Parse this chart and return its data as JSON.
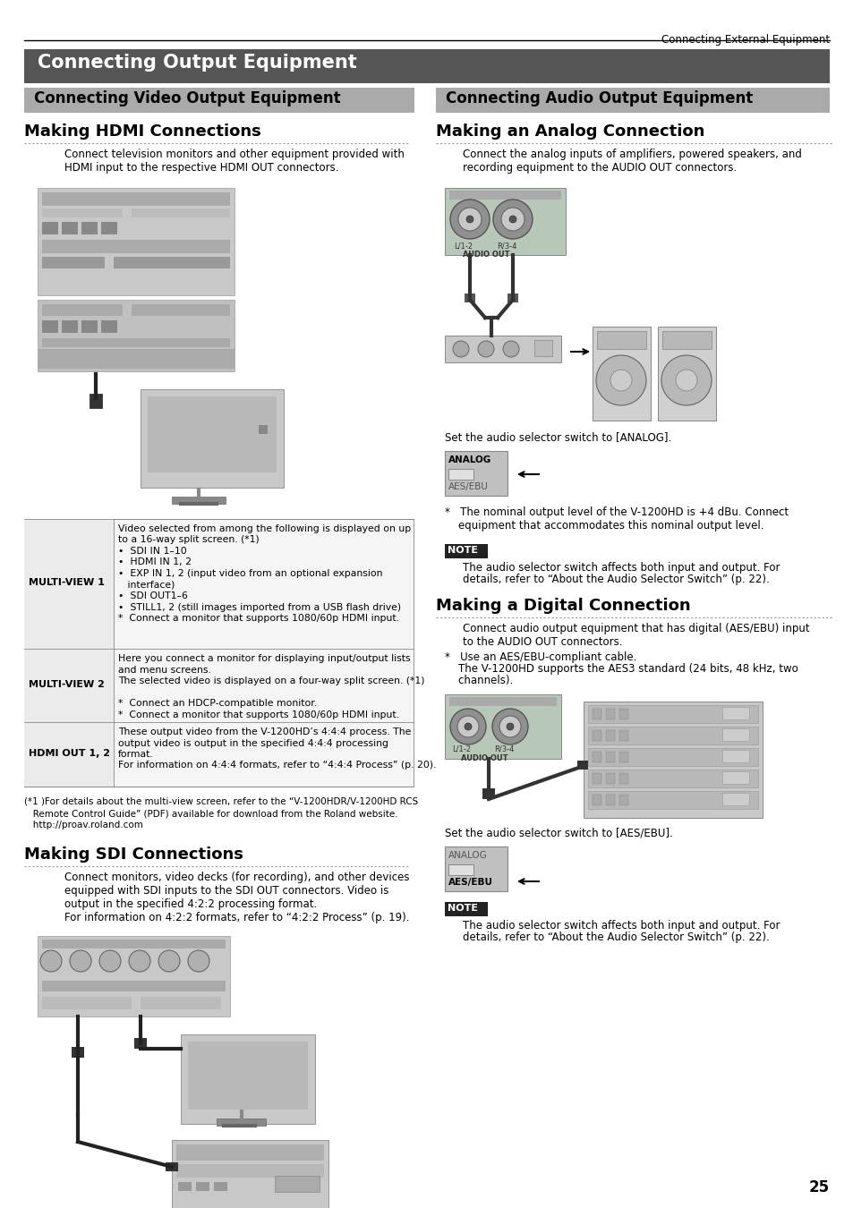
{
  "page_bg": "#ffffff",
  "header_text": "Connecting External Equipment",
  "main_title_text": "Connecting Output Equipment",
  "main_title_bg": "#555555",
  "main_title_text_color": "#ffffff",
  "section_header_bg": "#aaaaaa",
  "section_header_text_color": "#000000",
  "left_section_title": "Connecting Video Output Equipment",
  "right_section_title": "Connecting Audio Output Equipment",
  "making_hdmi_title": "Making HDMI Connections",
  "making_hdmi_body": "Connect television monitors and other equipment provided with\nHDMI input to the respective HDMI OUT connectors.",
  "making_sdi_title": "Making SDI Connections",
  "making_sdi_body": "Connect monitors, video decks (for recording), and other devices\nequipped with SDI inputs to the SDI OUT connectors. Video is\noutput in the specified 4:2:2 processing format.\nFor information on 4:2:2 formats, refer to “4:2:2 Process” (p. 19).",
  "making_analog_title": "Making an Analog Connection",
  "making_analog_body": "Connect the analog inputs of amplifiers, powered speakers, and\nrecording equipment to the AUDIO OUT connectors.",
  "analog_switch_text": "Set the audio selector switch to [ANALOG].",
  "analog_note_star": "*   The nominal output level of the V-1200HD is +4 dBu. Connect\n    equipment that accommodates this nominal output level.",
  "analog_note_box": "The audio selector switch affects both input and output. For\ndetails, refer to “About the Audio Selector Switch” (p. 22).",
  "making_digital_title": "Making a Digital Connection",
  "making_digital_body": "Connect audio output equipment that has digital (AES/EBU) input\nto the AUDIO OUT connectors.",
  "digital_note_star": "*   Use an AES/EBU-compliant cable.\n    The V-1200HD supports the AES3 standard (24 bits, 48 kHz, two\n    channels).",
  "digital_switch_text": "Set the audio selector switch to [AES/EBU].",
  "digital_note_box": "The audio selector switch affects both input and output. For\ndetails, refer to “About the Audio Selector Switch” (p. 22).",
  "footnote": "(*1 )For details about the multi-view screen, refer to the “V-1200HDR/V-1200HD RCS\n   Remote Control Guide” (PDF) available for download from the Roland website.\n   http://proav.roland.com",
  "table_rows": [
    {
      "label": "MULTI-VIEW 1",
      "content": "Video selected from among the following is displayed on up\nto a 16-way split screen. (*1)\n•  SDI IN 1–10\n•  HDMI IN 1, 2\n•  EXP IN 1, 2 (input video from an optional expansion\n   interface)\n•  SDI OUT1–6\n•  STILL1, 2 (still images imported from a USB flash drive)\n*  Connect a monitor that supports 1080/60p HDMI input."
    },
    {
      "label": "MULTI-VIEW 2",
      "content": "Here you connect a monitor for displaying input/output lists\nand menu screens.\nThe selected video is displayed on a four-way split screen. (*1)\n\n*  Connect an HDCP-compatible monitor.\n*  Connect a monitor that supports 1080/60p HDMI input."
    },
    {
      "label": "HDMI OUT 1, 2",
      "content": "These output video from the V-1200HD’s 4:4:4 process. The\noutput video is output in the specified 4:4:4 processing\nformat.\nFor information on 4:4:4 formats, refer to “4:4:4 Process” (p. 20)."
    }
  ],
  "page_number": "25",
  "note_label": "NOTE",
  "note_bg": "#222222",
  "note_text_color": "#ffffff",
  "body_text_size": 8.5,
  "small_text_size": 7.5,
  "dotted_color": "#999999"
}
